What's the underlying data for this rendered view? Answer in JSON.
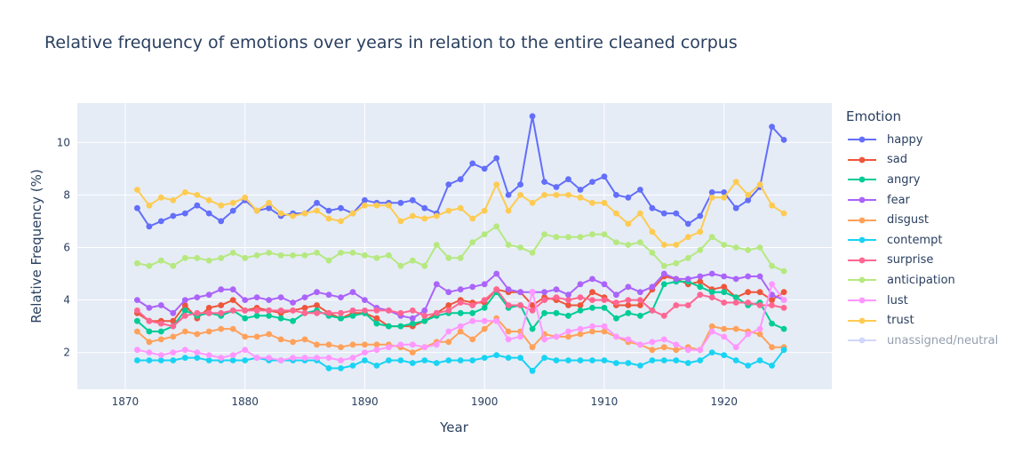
{
  "chart_data": {
    "type": "line",
    "title": "Relative frequency of emotions over years in relation to the entire cleaned corpus",
    "xlabel": "Year",
    "ylabel": "Relative Frequency (%)",
    "xlim": [
      1866,
      1929
    ],
    "ylim": [
      0.6,
      11.5
    ],
    "xticks": [
      1870,
      1880,
      1890,
      1900,
      1910,
      1920
    ],
    "yticks": [
      2,
      4,
      6,
      8,
      10
    ],
    "grid": true,
    "legend_title": "Emotion",
    "legend_position": "right",
    "x": [
      1871,
      1872,
      1873,
      1874,
      1875,
      1876,
      1877,
      1878,
      1879,
      1880,
      1881,
      1882,
      1883,
      1884,
      1885,
      1886,
      1887,
      1888,
      1889,
      1890,
      1891,
      1892,
      1893,
      1894,
      1895,
      1896,
      1897,
      1898,
      1899,
      1900,
      1901,
      1902,
      1903,
      1904,
      1905,
      1906,
      1907,
      1908,
      1909,
      1910,
      1911,
      1912,
      1913,
      1914,
      1915,
      1916,
      1917,
      1918,
      1919,
      1920,
      1921,
      1922,
      1923,
      1924,
      1925
    ],
    "series": [
      {
        "name": "happy",
        "color": "#636efa",
        "values": [
          7.5,
          6.8,
          7.0,
          7.2,
          7.3,
          7.6,
          7.3,
          7.0,
          7.4,
          7.8,
          7.4,
          7.5,
          7.2,
          7.3,
          7.3,
          7.7,
          7.4,
          7.5,
          7.3,
          7.8,
          7.7,
          7.7,
          7.7,
          7.8,
          7.5,
          7.3,
          8.4,
          8.6,
          9.2,
          9.0,
          9.4,
          8.0,
          8.4,
          11.0,
          8.5,
          8.3,
          8.6,
          8.2,
          8.5,
          8.7,
          8.0,
          7.9,
          8.2,
          7.5,
          7.3,
          7.3,
          6.9,
          7.2,
          8.1,
          8.1,
          7.5,
          7.8,
          8.3,
          10.6,
          10.1
        ]
      },
      {
        "name": "sad",
        "color": "#ef553b",
        "values": [
          3.5,
          3.2,
          3.2,
          3.2,
          3.8,
          3.3,
          3.7,
          3.8,
          4.0,
          3.6,
          3.7,
          3.6,
          3.5,
          3.6,
          3.7,
          3.8,
          3.5,
          3.3,
          3.5,
          3.5,
          3.3,
          3.0,
          3.0,
          3.0,
          3.2,
          3.5,
          3.8,
          4.0,
          3.9,
          3.9,
          4.4,
          4.3,
          4.3,
          3.8,
          4.1,
          4.0,
          3.8,
          3.8,
          4.3,
          4.1,
          3.8,
          3.8,
          3.8,
          4.4,
          4.9,
          4.8,
          4.6,
          4.7,
          4.4,
          4.5,
          4.1,
          4.3,
          4.3,
          4.0,
          4.3
        ]
      },
      {
        "name": "angry",
        "color": "#00cc96",
        "values": [
          3.2,
          2.8,
          2.8,
          3.0,
          3.6,
          3.4,
          3.5,
          3.4,
          3.6,
          3.3,
          3.4,
          3.4,
          3.3,
          3.2,
          3.5,
          3.6,
          3.4,
          3.3,
          3.4,
          3.5,
          3.1,
          3.0,
          3.0,
          3.1,
          3.2,
          3.4,
          3.5,
          3.5,
          3.5,
          3.7,
          4.3,
          3.7,
          3.8,
          2.9,
          3.5,
          3.5,
          3.4,
          3.6,
          3.7,
          3.7,
          3.3,
          3.5,
          3.4,
          3.6,
          4.6,
          4.7,
          4.7,
          4.5,
          4.3,
          4.3,
          4.1,
          3.8,
          3.9,
          3.1,
          2.9
        ]
      },
      {
        "name": "fear",
        "color": "#ab63fa",
        "values": [
          4.0,
          3.7,
          3.8,
          3.5,
          4.0,
          4.1,
          4.2,
          4.4,
          4.4,
          4.0,
          4.1,
          4.0,
          4.1,
          3.9,
          4.1,
          4.3,
          4.2,
          4.1,
          4.3,
          4.0,
          3.7,
          3.6,
          3.4,
          3.3,
          3.6,
          4.6,
          4.3,
          4.4,
          4.5,
          4.6,
          5.0,
          4.4,
          4.3,
          4.3,
          4.3,
          4.4,
          4.2,
          4.6,
          4.8,
          4.6,
          4.2,
          4.5,
          4.3,
          4.5,
          5.0,
          4.8,
          4.8,
          4.9,
          5.0,
          4.9,
          4.8,
          4.9,
          4.9,
          4.2,
          4.0
        ]
      },
      {
        "name": "disgust",
        "color": "#ffa15a",
        "values": [
          2.8,
          2.4,
          2.5,
          2.6,
          2.8,
          2.7,
          2.8,
          2.9,
          2.9,
          2.6,
          2.6,
          2.7,
          2.5,
          2.4,
          2.5,
          2.3,
          2.3,
          2.2,
          2.3,
          2.3,
          2.3,
          2.3,
          2.2,
          2.0,
          2.2,
          2.4,
          2.4,
          2.8,
          2.5,
          2.9,
          3.3,
          2.8,
          2.8,
          2.2,
          2.7,
          2.6,
          2.6,
          2.7,
          2.8,
          2.8,
          2.6,
          2.4,
          2.3,
          2.1,
          2.2,
          2.1,
          2.2,
          2.1,
          3.0,
          2.9,
          2.9,
          2.8,
          2.7,
          2.2,
          2.2
        ]
      },
      {
        "name": "contempt",
        "color": "#19d3f3",
        "values": [
          1.7,
          1.7,
          1.7,
          1.7,
          1.8,
          1.8,
          1.7,
          1.7,
          1.7,
          1.7,
          1.8,
          1.7,
          1.7,
          1.7,
          1.7,
          1.7,
          1.4,
          1.4,
          1.5,
          1.7,
          1.5,
          1.7,
          1.7,
          1.6,
          1.7,
          1.6,
          1.7,
          1.7,
          1.7,
          1.8,
          1.9,
          1.8,
          1.8,
          1.3,
          1.8,
          1.7,
          1.7,
          1.7,
          1.7,
          1.7,
          1.6,
          1.6,
          1.5,
          1.7,
          1.7,
          1.7,
          1.6,
          1.7,
          2.0,
          1.9,
          1.7,
          1.5,
          1.7,
          1.5,
          2.1
        ]
      },
      {
        "name": "surprise",
        "color": "#ff6692",
        "values": [
          3.6,
          3.2,
          3.1,
          3.0,
          3.4,
          3.5,
          3.5,
          3.5,
          3.6,
          3.6,
          3.6,
          3.6,
          3.6,
          3.6,
          3.5,
          3.5,
          3.5,
          3.5,
          3.6,
          3.6,
          3.6,
          3.6,
          3.5,
          3.6,
          3.4,
          3.5,
          3.6,
          3.9,
          3.8,
          4.0,
          4.4,
          3.8,
          3.8,
          3.6,
          4.0,
          4.1,
          4.0,
          4.1,
          4.0,
          4.0,
          3.9,
          4.0,
          4.0,
          3.6,
          3.4,
          3.8,
          3.8,
          4.2,
          4.1,
          3.9,
          3.9,
          3.9,
          3.8,
          3.8,
          3.7
        ]
      },
      {
        "name": "anticipation",
        "color": "#b6e880",
        "values": [
          5.4,
          5.3,
          5.5,
          5.3,
          5.6,
          5.6,
          5.5,
          5.6,
          5.8,
          5.6,
          5.7,
          5.8,
          5.7,
          5.7,
          5.7,
          5.8,
          5.5,
          5.8,
          5.8,
          5.7,
          5.6,
          5.7,
          5.3,
          5.5,
          5.3,
          6.1,
          5.6,
          5.6,
          6.2,
          6.5,
          6.8,
          6.1,
          6.0,
          5.8,
          6.5,
          6.4,
          6.4,
          6.4,
          6.5,
          6.5,
          6.2,
          6.1,
          6.2,
          5.8,
          5.3,
          5.4,
          5.6,
          5.9,
          6.4,
          6.1,
          6.0,
          5.9,
          6.0,
          5.3,
          5.1
        ]
      },
      {
        "name": "lust",
        "color": "#ff97ff",
        "values": [
          2.1,
          2.0,
          1.9,
          2.0,
          2.1,
          2.0,
          1.9,
          1.8,
          1.9,
          2.1,
          1.8,
          1.8,
          1.7,
          1.8,
          1.8,
          1.8,
          1.8,
          1.7,
          1.8,
          2.0,
          2.1,
          2.2,
          2.3,
          2.3,
          2.2,
          2.3,
          2.8,
          3.0,
          3.2,
          3.2,
          3.2,
          2.5,
          2.6,
          4.3,
          2.5,
          2.6,
          2.8,
          2.9,
          3.0,
          3.0,
          2.6,
          2.5,
          2.3,
          2.4,
          2.5,
          2.3,
          2.1,
          2.1,
          2.8,
          2.6,
          2.2,
          2.7,
          2.9,
          4.6,
          4.0
        ]
      },
      {
        "name": "trust",
        "color": "#fecb52",
        "values": [
          8.2,
          7.6,
          7.9,
          7.8,
          8.1,
          8.0,
          7.8,
          7.6,
          7.7,
          7.9,
          7.4,
          7.7,
          7.3,
          7.2,
          7.3,
          7.4,
          7.1,
          7.0,
          7.3,
          7.6,
          7.6,
          7.6,
          7.0,
          7.2,
          7.1,
          7.2,
          7.4,
          7.5,
          7.1,
          7.4,
          8.4,
          7.4,
          8.0,
          7.7,
          8.0,
          8.0,
          8.0,
          7.9,
          7.7,
          7.7,
          7.3,
          6.9,
          7.3,
          6.6,
          6.1,
          6.1,
          6.4,
          6.6,
          7.9,
          7.9,
          8.5,
          8.0,
          8.4,
          7.6,
          7.3
        ]
      }
    ],
    "extra_legend": {
      "name": "unassigned/neutral",
      "color": "#a5b1f7"
    }
  }
}
